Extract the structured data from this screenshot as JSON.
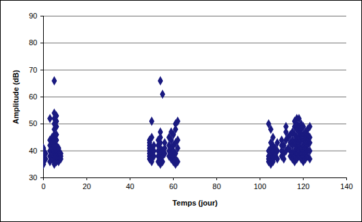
{
  "chart_data": {
    "type": "scatter",
    "xlabel": "Temps (jour)",
    "ylabel": "Amplitude (dB)",
    "x": [
      0,
      0,
      0,
      0,
      0,
      0,
      0,
      1,
      1,
      3,
      3,
      3,
      3,
      3,
      3,
      4,
      4,
      4,
      4,
      4,
      5,
      5,
      5,
      5,
      5,
      5,
      5,
      5,
      5,
      5,
      5,
      5,
      6,
      6,
      6,
      6,
      6,
      6,
      6,
      6,
      6,
      7,
      7,
      7,
      7,
      7,
      7,
      8,
      8,
      8,
      49,
      49,
      49,
      49,
      49,
      49,
      49,
      49,
      50,
      50,
      50,
      50,
      50,
      50,
      51,
      51,
      51,
      53,
      53,
      53,
      53,
      53,
      54,
      54,
      54,
      54,
      54,
      54,
      54,
      54,
      55,
      55,
      55,
      55,
      56,
      56,
      56,
      58,
      58,
      58,
      58,
      59,
      59,
      59,
      59,
      59,
      60,
      60,
      60,
      60,
      60,
      61,
      61,
      61,
      61,
      61,
      61,
      62,
      62,
      62,
      62,
      104,
      104,
      104,
      104,
      104,
      105,
      105,
      105,
      105,
      105,
      105,
      105,
      105,
      106,
      106,
      106,
      106,
      106,
      106,
      107,
      107,
      107,
      108,
      108,
      108,
      110,
      110,
      110,
      110,
      111,
      111,
      111,
      112,
      112,
      112,
      112,
      113,
      113,
      114,
      114,
      114,
      114,
      115,
      115,
      115,
      115,
      115,
      116,
      116,
      116,
      116,
      116,
      116,
      116,
      117,
      117,
      117,
      117,
      117,
      117,
      117,
      117,
      117,
      118,
      118,
      118,
      118,
      118,
      118,
      118,
      118,
      119,
      119,
      119,
      119,
      119,
      119,
      119,
      120,
      120,
      120,
      120,
      120,
      120,
      120,
      121,
      121,
      121,
      121,
      121,
      121,
      122,
      122,
      122,
      122,
      122,
      122,
      123,
      123,
      123,
      123,
      123
    ],
    "values": [
      36,
      37,
      38,
      39,
      40,
      41,
      35,
      37,
      39,
      38,
      40,
      42,
      44,
      52,
      36,
      37,
      39,
      41,
      43,
      45,
      35,
      36,
      38,
      40,
      42,
      44,
      46,
      48,
      50,
      52,
      54,
      66,
      36,
      38,
      40,
      42,
      44,
      46,
      49,
      51,
      53,
      36,
      37,
      38,
      39,
      40,
      41,
      37,
      38,
      39,
      37,
      38,
      39,
      40,
      41,
      42,
      43,
      44,
      36,
      37,
      39,
      41,
      45,
      51,
      38,
      40,
      42,
      36,
      38,
      40,
      42,
      44,
      35,
      37,
      39,
      41,
      43,
      45,
      47,
      66,
      36,
      38,
      40,
      61,
      39,
      41,
      43,
      38,
      40,
      42,
      45,
      37,
      39,
      41,
      44,
      47,
      36,
      38,
      40,
      42,
      46,
      35,
      37,
      39,
      43,
      48,
      50,
      36,
      41,
      44,
      51,
      36,
      37,
      38,
      40,
      50,
      35,
      36,
      37,
      38,
      39,
      41,
      43,
      48,
      36,
      37,
      38,
      40,
      42,
      45,
      38,
      39,
      41,
      37,
      40,
      43,
      38,
      40,
      42,
      44,
      37,
      39,
      42,
      40,
      44,
      47,
      49,
      41,
      45,
      38,
      40,
      43,
      46,
      37,
      39,
      42,
      44,
      47,
      36,
      38,
      40,
      43,
      46,
      49,
      51,
      37,
      39,
      41,
      42,
      44,
      45,
      48,
      50,
      52,
      38,
      40,
      42,
      43,
      45,
      47,
      49,
      52,
      37,
      39,
      41,
      44,
      46,
      48,
      50,
      36,
      38,
      40,
      42,
      44,
      46,
      49,
      37,
      39,
      41,
      43,
      45,
      47,
      38,
      40,
      42,
      44,
      46,
      48,
      37,
      40,
      43,
      45,
      49
    ],
    "color": "#1a1a80",
    "marker": "diamond",
    "xlim": [
      0,
      140
    ],
    "xticks": [
      0,
      20,
      40,
      60,
      80,
      100,
      120,
      140
    ],
    "ylim": [
      30,
      90
    ],
    "yticks": [
      30,
      40,
      50,
      60,
      70,
      80,
      90
    ],
    "grid": true
  }
}
